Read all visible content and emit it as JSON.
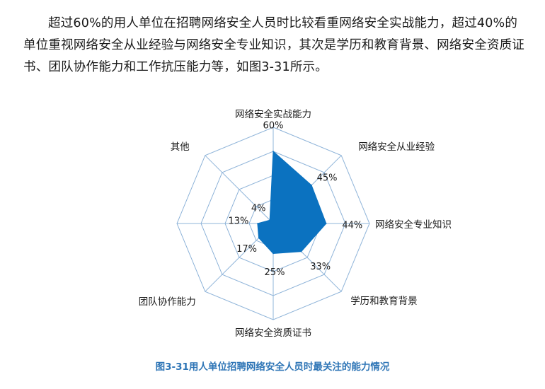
{
  "document": {
    "paragraph": "超过60%的用人单位在招聘网络安全人员时比较看重网络安全实战能力，超过40%的单位重视网络安全从业经验与网络安全专业知识，其次是学历和教育背景、网络安全资质证书、团队协作能力和工作抗压能力等，如图3-31所示。",
    "caption": "图3-31用人单位招聘网络安全人员时最关注的能力情况"
  },
  "colors": {
    "fill": "#0b72c0",
    "grid": "#8fb4d9",
    "caption": "#2e75b6"
  },
  "chart_data": {
    "type": "radar",
    "categories": [
      "网络安全实战能力",
      "网络安全从业经验",
      "网络安全专业知识",
      "学历和教育背景",
      "网络安全资质证书",
      "团队协作能力",
      "其他",
      "其他"
    ],
    "values": [
      60,
      45,
      44,
      33,
      25,
      17,
      13,
      4
    ],
    "value_labels": [
      "60%",
      "45%",
      "44%",
      "33%",
      "25%",
      "17%",
      "13%",
      "4%"
    ],
    "axis_labels": [
      "网络安全实战能力",
      "网络安全从业经验",
      "网络安全专业知识",
      "学历和教育背景",
      "网络安全资质证书",
      "团队协作能力",
      "",
      "其他"
    ],
    "rlim": [
      0,
      80
    ],
    "rings": 4,
    "grid": true,
    "legend": "none"
  }
}
